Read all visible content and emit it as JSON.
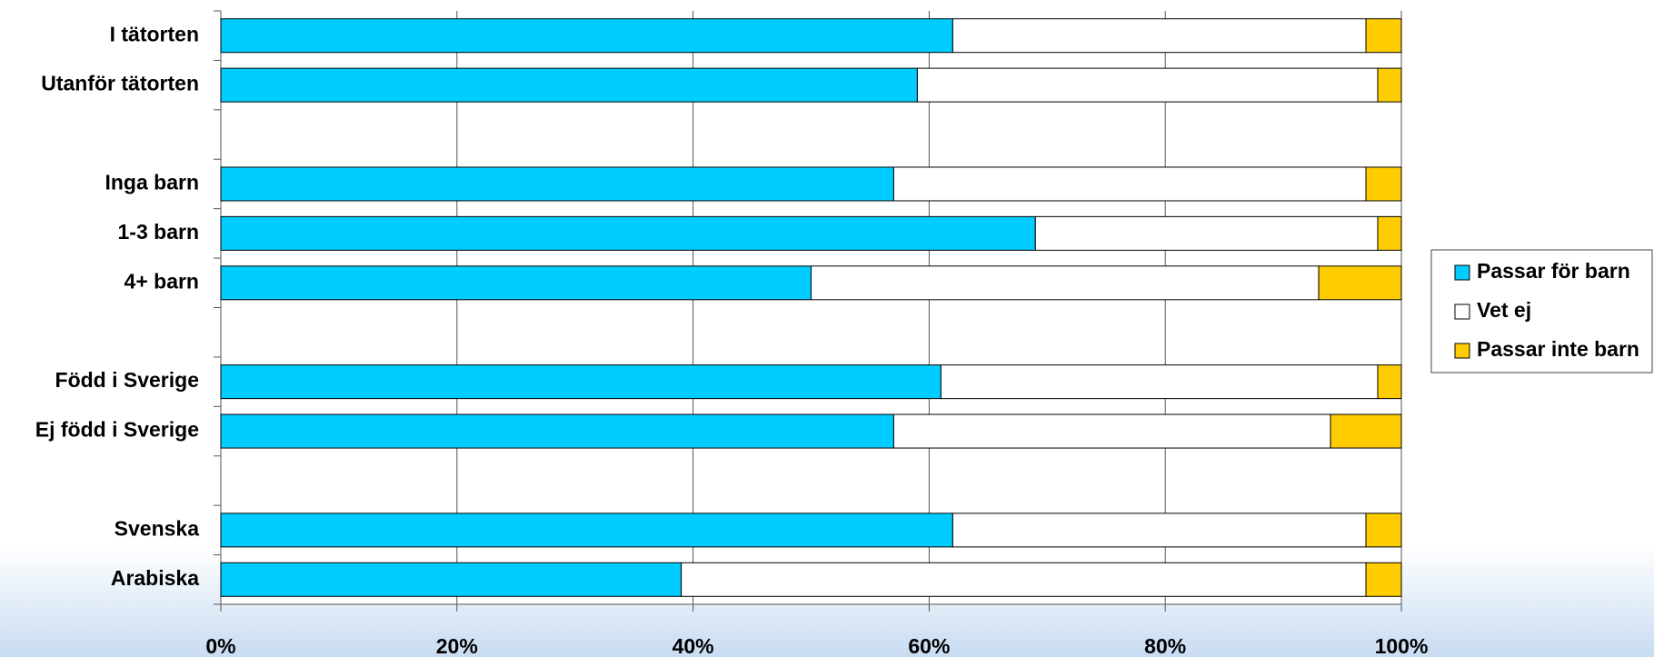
{
  "chart_data": {
    "type": "stacked-bar-horizontal",
    "categories": [
      "I tätorten",
      "Utanför tätorten",
      null,
      "Inga barn",
      "1-3 barn",
      "4+ barn",
      null,
      "Född i Sverige",
      "Ej född i Sverige",
      null,
      "Svenska",
      "Arabiska"
    ],
    "series": [
      {
        "name": "Passar för barn",
        "color": "#00ccff",
        "values": [
          62,
          59,
          null,
          57,
          69,
          50,
          null,
          61,
          57,
          null,
          62,
          39
        ]
      },
      {
        "name": "Vet ej",
        "color": "#ffffff",
        "values": [
          35,
          39,
          null,
          40,
          29,
          43,
          null,
          37,
          37,
          null,
          35,
          58
        ]
      },
      {
        "name": "Passar inte barn",
        "color": "#ffcc00",
        "values": [
          3,
          2,
          null,
          3,
          2,
          7,
          null,
          2,
          6,
          null,
          3,
          3
        ]
      }
    ],
    "xlim": [
      0,
      100
    ],
    "xticks": [
      {
        "value": 0,
        "label": "0%"
      },
      {
        "value": 20,
        "label": "20%"
      },
      {
        "value": 40,
        "label": "40%"
      },
      {
        "value": 60,
        "label": "60%"
      },
      {
        "value": 80,
        "label": "80%"
      },
      {
        "value": 100,
        "label": "100%"
      }
    ],
    "grid": true,
    "legend": "right"
  }
}
